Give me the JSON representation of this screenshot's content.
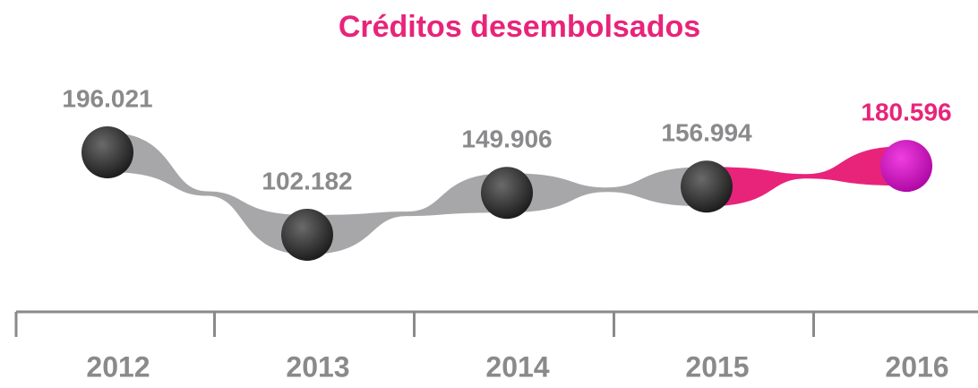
{
  "chart_data": {
    "type": "ribbon",
    "title": "Créditos desembolsados",
    "categories": [
      "2012",
      "2013",
      "2014",
      "2015",
      "2016"
    ],
    "values": [
      196021,
      102182,
      149906,
      156994,
      180596
    ],
    "value_labels": [
      "196.021",
      "102.182",
      "149.906",
      "156.994",
      "180.596"
    ],
    "point_colors": [
      "#3a3a3a",
      "#3a3a3a",
      "#3a3a3a",
      "#3a3a3a",
      "#d10fbf"
    ],
    "label_colors": [
      "#8a8a8c",
      "#8a8a8c",
      "#8a8a8c",
      "#8a8a8c",
      "#e8247a"
    ],
    "connector_colors": [
      "#a7a7a9",
      "#a7a7a9",
      "#a7a7a9",
      "#e8247a"
    ],
    "title_color": "#e8247a"
  }
}
